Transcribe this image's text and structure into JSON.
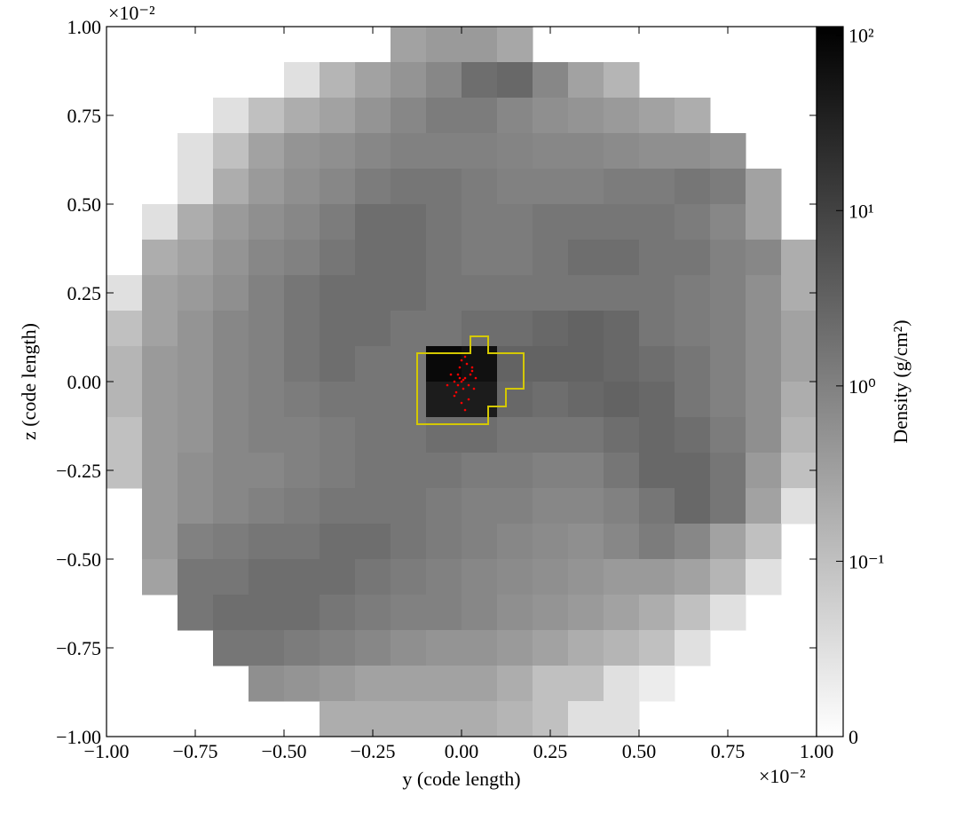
{
  "chart_data": {
    "type": "heatmap",
    "xlabel": "y  (code length)",
    "ylabel": "z  (code length)",
    "x_offset_label": "×10⁻²",
    "y_offset_label": "×10⁻²",
    "xlim": [
      -1,
      1
    ],
    "ylim": [
      -1,
      1
    ],
    "xticks": [
      {
        "value": -1,
        "label": "−1.00"
      },
      {
        "value": -0.75,
        "label": "−0.75"
      },
      {
        "value": -0.5,
        "label": "−0.50"
      },
      {
        "value": -0.25,
        "label": "−0.25"
      },
      {
        "value": 0,
        "label": "0.00"
      },
      0.25,
      {
        "value": 0.5,
        "label": "0.50"
      },
      0.75,
      {
        "value": 1,
        "label": "1.00"
      }
    ],
    "yticks": [
      {
        "value": -1,
        "label": "−1.00"
      },
      {
        "value": -0.75,
        "label": "−0.75"
      },
      {
        "value": -0.5,
        "label": "−0.50"
      },
      {
        "value": -0.25,
        "label": "−0.25"
      },
      {
        "value": 0,
        "label": "0.00"
      },
      0.25,
      {
        "value": 0.5,
        "label": "0.50"
      },
      0.75,
      {
        "value": 1,
        "label": "1.00"
      }
    ],
    "colorbar_label": "Density  (g/cm²)",
    "colorbar_scale": "symlog",
    "linthresh": 0.1,
    "zlim": [
      0,
      112
    ],
    "zticks": [
      0,
      {
        "value": 0.1,
        "label": "10⁻¹"
      },
      {
        "value": 1,
        "label": "10⁰"
      },
      {
        "value": 10,
        "label": "10¹"
      },
      {
        "value": 100,
        "label": "10²"
      }
    ],
    "grid_values": [
      [
        null,
        null,
        null,
        null,
        null,
        null,
        null,
        null,
        0.3,
        0.4,
        0.4,
        0.25,
        null,
        null,
        null,
        null,
        null,
        null,
        null,
        null
      ],
      [
        null,
        null,
        null,
        null,
        null,
        0.05,
        0.15,
        0.3,
        0.5,
        0.8,
        2,
        2.5,
        0.8,
        0.3,
        0.15,
        null,
        null,
        null,
        null,
        null
      ],
      [
        null,
        null,
        null,
        0.05,
        0.1,
        0.2,
        0.3,
        0.5,
        0.8,
        1.2,
        1.2,
        0.8,
        0.6,
        0.5,
        0.4,
        0.3,
        0.2,
        null,
        null,
        null
      ],
      [
        null,
        null,
        0.05,
        0.1,
        0.3,
        0.5,
        0.6,
        0.8,
        1,
        1,
        1,
        0.9,
        0.8,
        0.8,
        0.7,
        0.6,
        0.6,
        0.5,
        null,
        null
      ],
      [
        null,
        null,
        0.05,
        0.2,
        0.4,
        0.6,
        0.8,
        1.2,
        1.5,
        1.5,
        1.2,
        1,
        1,
        1,
        1.2,
        1.2,
        1.5,
        1.2,
        0.3,
        null
      ],
      [
        null,
        0.05,
        0.2,
        0.4,
        0.6,
        0.8,
        1.2,
        2,
        2,
        1.5,
        1.2,
        1.2,
        1.5,
        1.5,
        1.5,
        1.5,
        1.2,
        0.8,
        0.3,
        null
      ],
      [
        null,
        0.2,
        0.3,
        0.5,
        0.8,
        1,
        1.5,
        2,
        2,
        1.5,
        1.2,
        1.2,
        1.5,
        2,
        2,
        1.5,
        1.5,
        1,
        0.8,
        0.2
      ],
      [
        0.05,
        0.3,
        0.4,
        0.6,
        1,
        1.5,
        2,
        2,
        2,
        1.5,
        1.5,
        1.5,
        1.5,
        1.5,
        1.5,
        1.5,
        1.2,
        1,
        0.6,
        0.2
      ],
      [
        0.1,
        0.3,
        0.5,
        0.8,
        1,
        1.5,
        2,
        2,
        1.5,
        1.5,
        2,
        2,
        2.5,
        3,
        2.5,
        1.5,
        1.2,
        1,
        0.6,
        0.3
      ],
      [
        0.15,
        0.4,
        0.5,
        0.8,
        1,
        1.5,
        2,
        1.5,
        1.5,
        80,
        60,
        3,
        3,
        3,
        2.5,
        2,
        1.5,
        1,
        0.6,
        0.3
      ],
      [
        0.15,
        0.4,
        0.5,
        0.8,
        1,
        1.2,
        1.5,
        1.5,
        1.5,
        40,
        40,
        2.5,
        2,
        2.5,
        3,
        2.5,
        1.5,
        1,
        0.6,
        0.2
      ],
      [
        0.1,
        0.4,
        0.5,
        0.8,
        1,
        1,
        1.2,
        1.5,
        1.5,
        2,
        2,
        1.5,
        1.5,
        1.5,
        2,
        2.5,
        2,
        1.2,
        0.6,
        0.15
      ],
      [
        0.1,
        0.4,
        0.6,
        0.8,
        0.8,
        1,
        1.2,
        1.5,
        1.5,
        1.5,
        1.2,
        1.2,
        1,
        1,
        1.5,
        2.5,
        2.5,
        1.5,
        0.4,
        0.1
      ],
      [
        null,
        0.4,
        0.6,
        0.8,
        1,
        1.2,
        1.5,
        1.5,
        1.5,
        1.2,
        1,
        1,
        0.8,
        0.8,
        1,
        1.5,
        2.5,
        1.5,
        0.3,
        0.05
      ],
      [
        null,
        0.4,
        1,
        1.2,
        1.5,
        1.5,
        2,
        2,
        1.5,
        1.2,
        1,
        0.8,
        0.7,
        0.6,
        0.8,
        1.2,
        0.8,
        0.3,
        0.1,
        null
      ],
      [
        null,
        0.3,
        1.5,
        1.5,
        2,
        2,
        2,
        1.5,
        1.2,
        1,
        0.8,
        0.7,
        0.6,
        0.5,
        0.4,
        0.4,
        0.3,
        0.15,
        0.05,
        null
      ],
      [
        null,
        null,
        1.5,
        2,
        2,
        2,
        1.5,
        1.2,
        1,
        1,
        0.8,
        0.6,
        0.5,
        0.4,
        0.3,
        0.2,
        0.1,
        0.05,
        null,
        null
      ],
      [
        null,
        null,
        null,
        1.5,
        1.5,
        1.2,
        1,
        0.8,
        0.6,
        0.5,
        0.5,
        0.4,
        0.3,
        0.2,
        0.15,
        0.1,
        0.05,
        null,
        null,
        null
      ],
      [
        null,
        null,
        null,
        null,
        0.6,
        0.5,
        0.4,
        0.3,
        0.3,
        0.3,
        0.3,
        0.2,
        0.1,
        0.1,
        0.05,
        0.03,
        null,
        null,
        null,
        null
      ],
      [
        null,
        null,
        null,
        null,
        null,
        null,
        0.2,
        0.2,
        0.2,
        0.2,
        0.2,
        0.15,
        0.1,
        0.05,
        0.05,
        null,
        null,
        null,
        null,
        null
      ]
    ],
    "particles": {
      "color": "#ff0000",
      "x": [
        0,
        0.01,
        -0.01,
        0.02,
        -0.02,
        0.03,
        0.005,
        -0.005,
        0.015,
        -0.015,
        0.04,
        -0.03,
        0.02,
        0,
        0.01,
        -0.02,
        0.025,
        -0.01,
        0.005,
        0.035,
        -0.04,
        0.01,
        0,
        -0.005,
        0.03
      ],
      "y": [
        0,
        0.01,
        0.02,
        -0.01,
        0,
        0.03,
        -0.02,
        0.04,
        0.05,
        -0.03,
        0.01,
        0.02,
        -0.05,
        -0.06,
        0.07,
        -0.04,
        0.02,
        -0.01,
        0.005,
        -0.02,
        -0.01,
        -0.08,
        0.06,
        0.01,
        0.04
      ]
    }
  }
}
